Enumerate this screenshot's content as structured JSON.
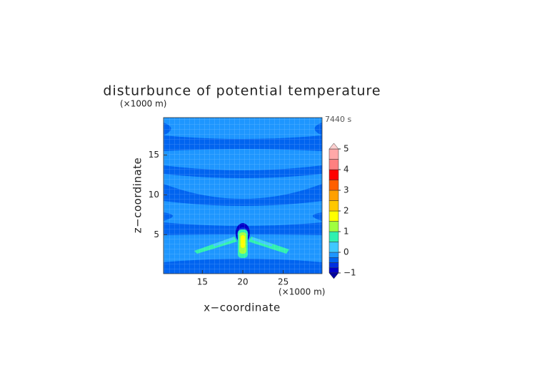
{
  "chart_data": {
    "type": "contour",
    "title": "disturbunce of potential temperature",
    "time_label": "7440 s",
    "x_label": "x−coordinate",
    "y_label": "z−coordinate",
    "x_unit": "(×1000 m)",
    "y_unit": "(×1000 m)",
    "xlim": [
      10.2,
      29.8
    ],
    "ylim": [
      0.1,
      19.7
    ],
    "xticks": [
      15,
      20,
      25
    ],
    "yticks": [
      5,
      10,
      15
    ],
    "grid": true,
    "colorbar": {
      "levels": [
        -1,
        -0.75,
        -0.5,
        -0.25,
        0,
        0.5,
        1,
        1.5,
        2,
        2.5,
        3,
        3.5,
        4,
        4.5,
        5
      ],
      "colors": [
        "#0000c8",
        "#0030e0",
        "#0064f0",
        "#1e96ff",
        "#40c8ff",
        "#30f0b0",
        "#a0ff40",
        "#ffff00",
        "#ffc800",
        "#ffa000",
        "#ff6000",
        "#ff0000",
        "#ff8080",
        "#ffa8a8"
      ],
      "under_color": "#0000a0",
      "over_color": "#ffd0d0",
      "ticks": [
        {
          "value": -1,
          "label": "−1"
        },
        0,
        1,
        2,
        3,
        4,
        5
      ]
    }
  }
}
